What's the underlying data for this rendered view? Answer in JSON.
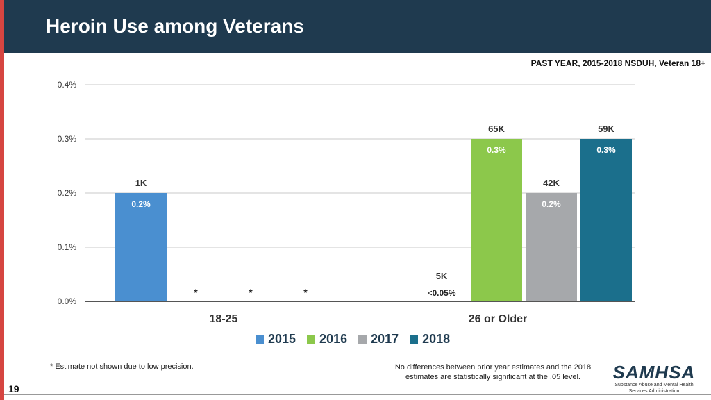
{
  "slide": {
    "title": "Heroin Use among Veterans",
    "subtitle_note": "PAST YEAR, 2015-2018 NSDUH, Veteran 18+",
    "footnote_left": "* Estimate not shown due to low precision.",
    "footnote_right": "No differences between prior year estimates and the 2018 estimates are statistically significant at the .05 level.",
    "page_number": "19",
    "logo_main": "SAMHSA",
    "logo_sub": "Substance Abuse and Mental Health Services Administration"
  },
  "colors": {
    "2015": "#4a8fd0",
    "2016": "#8cc84b",
    "2017": "#a6a8ab",
    "2018": "#1b6f8c"
  },
  "chart_data": {
    "type": "bar",
    "title": "Heroin Use among Veterans",
    "xlabel": "",
    "ylabel": "",
    "ylim": [
      0,
      0.4
    ],
    "yticks": [
      "0.0%",
      "0.1%",
      "0.2%",
      "0.3%",
      "0.4%"
    ],
    "grid": true,
    "legend_position": "bottom",
    "categories": [
      "18-25",
      "26 or Older"
    ],
    "series": [
      {
        "name": "2015",
        "values": [
          0.2,
          0.0
        ],
        "top_labels": [
          "1K",
          "5K"
        ],
        "inner_labels": [
          "0.2%",
          ""
        ],
        "base_labels": [
          "",
          "<0.05%"
        ]
      },
      {
        "name": "2016",
        "values": [
          0.0,
          0.3
        ],
        "top_labels": [
          "",
          "65K"
        ],
        "inner_labels": [
          "",
          "0.3%"
        ],
        "base_labels": [
          "*",
          ""
        ]
      },
      {
        "name": "2017",
        "values": [
          0.0,
          0.2
        ],
        "top_labels": [
          "",
          "42K"
        ],
        "inner_labels": [
          "",
          "0.2%"
        ],
        "base_labels": [
          "*",
          ""
        ]
      },
      {
        "name": "2018",
        "values": [
          0.0,
          0.3
        ],
        "top_labels": [
          "",
          "59K"
        ],
        "inner_labels": [
          "",
          "0.3%"
        ],
        "base_labels": [
          "*",
          ""
        ]
      }
    ]
  }
}
